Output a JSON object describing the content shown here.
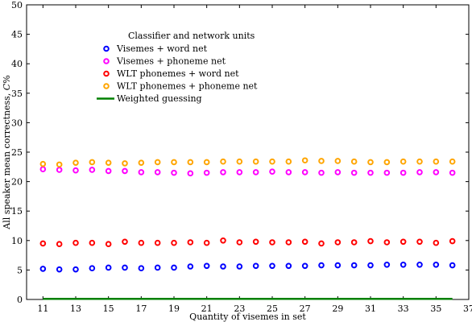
{
  "chart_data": {
    "type": "scatter",
    "xlabel": "Quantity of visemes in set",
    "ylabel": "All speaker mean correctness, C%",
    "xlim": [
      10,
      37
    ],
    "ylim": [
      0,
      50
    ],
    "xticks": [
      11,
      13,
      15,
      17,
      19,
      21,
      23,
      25,
      27,
      29,
      31,
      33,
      35,
      37
    ],
    "yticks": [
      0,
      5,
      10,
      15,
      20,
      25,
      30,
      35,
      40,
      45,
      50
    ],
    "grid": false,
    "legend": {
      "title": "Classifier and network units",
      "position": "top-left"
    },
    "x": [
      11,
      12,
      13,
      14,
      15,
      16,
      17,
      18,
      19,
      20,
      21,
      22,
      23,
      24,
      25,
      26,
      27,
      28,
      29,
      30,
      31,
      32,
      33,
      34,
      35,
      36
    ],
    "series": [
      {
        "name": "Visemes + word net",
        "kind": "markers",
        "color": "#0000ff",
        "values": [
          5.2,
          5.1,
          5.1,
          5.3,
          5.4,
          5.4,
          5.3,
          5.4,
          5.4,
          5.6,
          5.7,
          5.6,
          5.6,
          5.7,
          5.7,
          5.7,
          5.7,
          5.8,
          5.8,
          5.8,
          5.8,
          5.9,
          5.9,
          5.9,
          5.9,
          5.8
        ]
      },
      {
        "name": "Visemes + phoneme net",
        "kind": "markers",
        "color": "#ff00ff",
        "values": [
          22.1,
          22.0,
          21.9,
          22.0,
          21.8,
          21.8,
          21.6,
          21.6,
          21.5,
          21.4,
          21.5,
          21.6,
          21.6,
          21.6,
          21.7,
          21.6,
          21.6,
          21.5,
          21.6,
          21.5,
          21.5,
          21.5,
          21.5,
          21.6,
          21.6,
          21.5
        ]
      },
      {
        "name": "WLT phonemes + word net",
        "kind": "markers",
        "color": "#ff0000",
        "values": [
          9.5,
          9.4,
          9.6,
          9.6,
          9.4,
          9.8,
          9.6,
          9.6,
          9.6,
          9.7,
          9.6,
          10.0,
          9.7,
          9.8,
          9.7,
          9.7,
          9.8,
          9.5,
          9.7,
          9.7,
          9.9,
          9.7,
          9.8,
          9.8,
          9.6,
          9.9
        ]
      },
      {
        "name": "WLT phonemes + phoneme net",
        "kind": "markers",
        "color": "#ffa500",
        "values": [
          23.0,
          22.9,
          23.2,
          23.3,
          23.2,
          23.1,
          23.2,
          23.3,
          23.3,
          23.3,
          23.3,
          23.4,
          23.4,
          23.4,
          23.4,
          23.4,
          23.6,
          23.5,
          23.5,
          23.4,
          23.3,
          23.3,
          23.4,
          23.4,
          23.4,
          23.4
        ]
      },
      {
        "name": "Weighted guessing",
        "kind": "line",
        "color": "#008000",
        "values": [
          0.1,
          0.1,
          0.1,
          0.1,
          0.1,
          0.1,
          0.1,
          0.1,
          0.1,
          0.1,
          0.1,
          0.1,
          0.1,
          0.1,
          0.1,
          0.1,
          0.1,
          0.1,
          0.1,
          0.1,
          0.1,
          0.1,
          0.1,
          0.1,
          0.1,
          0.1
        ]
      }
    ]
  }
}
